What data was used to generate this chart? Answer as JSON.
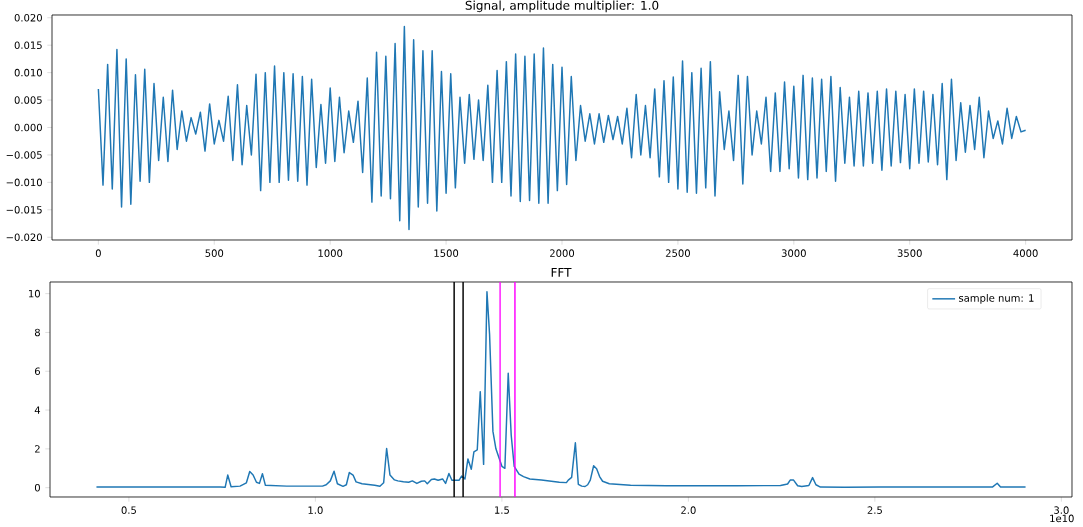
{
  "chart_data": [
    {
      "type": "line",
      "title": "Signal, amplitude multiplier: 1.0",
      "xlim": [
        -200,
        4200
      ],
      "ylim": [
        -0.0205,
        0.0205
      ],
      "xticks": [
        0,
        500,
        1000,
        1500,
        2000,
        2500,
        3000,
        3500,
        4000
      ],
      "yticks": [
        {
          "value": -0.02,
          "label": "−0.020"
        },
        {
          "value": -0.015,
          "label": "−0.015"
        },
        {
          "value": -0.01,
          "label": "−0.010"
        },
        {
          "value": -0.005,
          "label": "−0.005"
        },
        {
          "value": 0,
          "label": "0.000"
        },
        {
          "value": 0.005,
          "label": "0.005"
        },
        {
          "value": 0.01,
          "label": "0.010"
        },
        {
          "value": 0.015,
          "label": "0.015"
        },
        {
          "value": 0.02,
          "label": "0.020"
        }
      ],
      "x": [
        0,
        20,
        40,
        60,
        80,
        100,
        120,
        140,
        160,
        180,
        200,
        220,
        240,
        260,
        280,
        300,
        320,
        340,
        360,
        380,
        400,
        420,
        440,
        460,
        480,
        500,
        520,
        540,
        560,
        580,
        600,
        620,
        640,
        660,
        680,
        700,
        720,
        740,
        760,
        780,
        800,
        820,
        840,
        860,
        880,
        900,
        920,
        940,
        960,
        980,
        1000,
        1020,
        1040,
        1060,
        1080,
        1100,
        1120,
        1140,
        1160,
        1180,
        1200,
        1220,
        1240,
        1260,
        1280,
        1300,
        1320,
        1340,
        1360,
        1380,
        1400,
        1420,
        1440,
        1460,
        1480,
        1500,
        1520,
        1540,
        1560,
        1580,
        1600,
        1620,
        1640,
        1660,
        1680,
        1700,
        1720,
        1740,
        1760,
        1780,
        1800,
        1820,
        1840,
        1860,
        1880,
        1900,
        1920,
        1940,
        1960,
        1980,
        2000,
        2020,
        2040,
        2060,
        2080,
        2100,
        2120,
        2140,
        2160,
        2180,
        2200,
        2220,
        2240,
        2260,
        2280,
        2300,
        2320,
        2340,
        2360,
        2380,
        2400,
        2420,
        2440,
        2460,
        2480,
        2500,
        2520,
        2540,
        2560,
        2580,
        2600,
        2620,
        2640,
        2660,
        2680,
        2700,
        2720,
        2740,
        2760,
        2780,
        2800,
        2820,
        2840,
        2860,
        2880,
        2900,
        2920,
        2940,
        2960,
        2980,
        3000,
        3020,
        3040,
        3060,
        3080,
        3100,
        3120,
        3140,
        3160,
        3180,
        3200,
        3220,
        3240,
        3260,
        3280,
        3300,
        3320,
        3340,
        3360,
        3380,
        3400,
        3420,
        3440,
        3460,
        3480,
        3500,
        3520,
        3540,
        3560,
        3580,
        3600,
        3620,
        3640,
        3660,
        3680,
        3700,
        3720,
        3740,
        3760,
        3780,
        3800,
        3820,
        3840,
        3860,
        3880,
        3900,
        3920,
        3940,
        3960,
        3980,
        4000
      ],
      "series": [
        {
          "color": "#1f77b4",
          "values": [
            0.007,
            -0.0105,
            0.0115,
            -0.0112,
            0.0142,
            -0.0145,
            0.0125,
            -0.014,
            0.0096,
            -0.0098,
            0.0106,
            -0.01,
            0.008,
            -0.006,
            0.0055,
            -0.0062,
            0.0068,
            -0.004,
            0.003,
            -0.0025,
            0.0018,
            -0.0012,
            0.0028,
            -0.0043,
            0.0043,
            -0.003,
            0.0013,
            -0.0025,
            0.0057,
            -0.006,
            0.0078,
            -0.0068,
            0.004,
            -0.005,
            0.0097,
            -0.0115,
            0.01,
            -0.01,
            0.0112,
            -0.01,
            0.01,
            -0.0096,
            0.0098,
            -0.0098,
            0.0093,
            -0.0105,
            0.0088,
            -0.0073,
            0.0042,
            -0.0065,
            0.0072,
            -0.0062,
            0.0055,
            -0.0046,
            0.003,
            -0.0027,
            0.0048,
            -0.0082,
            0.009,
            -0.0136,
            0.0137,
            -0.0125,
            0.013,
            -0.013,
            0.0153,
            -0.017,
            0.0184,
            -0.0186,
            0.016,
            -0.0145,
            0.014,
            -0.0138,
            0.014,
            -0.0152,
            0.0102,
            -0.012,
            0.0098,
            -0.011,
            0.0055,
            -0.0065,
            0.006,
            -0.0058,
            0.005,
            -0.006,
            0.0077,
            -0.01,
            0.0104,
            -0.01,
            0.012,
            -0.0125,
            0.0134,
            -0.0135,
            0.013,
            -0.0133,
            0.0134,
            -0.0138,
            0.0145,
            -0.0138,
            0.0115,
            -0.0115,
            0.011,
            -0.0104,
            0.0093,
            -0.006,
            0.004,
            -0.0025,
            0.0025,
            -0.003,
            0.0025,
            -0.0027,
            0.0022,
            -0.0022,
            0.002,
            -0.003,
            0.0035,
            -0.0055,
            0.006,
            -0.005,
            0.004,
            -0.0055,
            0.007,
            -0.009,
            0.0085,
            -0.01,
            0.0092,
            -0.0112,
            0.0121,
            -0.0118,
            0.01,
            -0.012,
            0.0108,
            -0.011,
            0.012,
            -0.0125,
            0.0065,
            -0.004,
            0.003,
            -0.006,
            0.0095,
            -0.0103,
            0.0093,
            -0.005,
            0.003,
            -0.003,
            0.0055,
            -0.008,
            0.0063,
            -0.008,
            0.0083,
            -0.0075,
            0.0075,
            -0.0092,
            0.0095,
            -0.0095,
            0.009,
            -0.0092,
            0.0088,
            -0.008,
            0.0093,
            -0.0098,
            0.0073,
            -0.0065,
            0.0055,
            -0.007,
            0.0066,
            -0.007,
            0.0063,
            -0.0065,
            0.0066,
            -0.0078,
            0.007,
            -0.007,
            0.0066,
            -0.0064,
            0.006,
            -0.0075,
            0.007,
            -0.0065,
            0.0066,
            -0.0063,
            0.006,
            -0.0068,
            0.008,
            -0.0095,
            0.0088,
            -0.006,
            0.0045,
            -0.0045,
            0.004,
            -0.004,
            0.0055,
            -0.0055,
            0.003,
            -0.002,
            0.0012,
            -0.003,
            0.0035,
            -0.002,
            0.002,
            -0.0008,
            -0.0005
          ]
        }
      ]
    },
    {
      "type": "line",
      "title": "FFT",
      "xlim": [
        0.2885,
        3.0285
      ],
      "ylim": [
        -0.48,
        10.6
      ],
      "xticks": [
        0.5,
        {
          "value": 1,
          "label": "1.0"
        },
        1.5,
        {
          "value": 2,
          "label": "2.0"
        },
        2.5,
        {
          "value": 3,
          "label": "3.0"
        }
      ],
      "yticks": [
        0,
        2,
        4,
        6,
        8,
        10
      ],
      "annotations": [
        "1e10"
      ],
      "legend": "top right",
      "ref_lines": [
        {
          "axis": "x",
          "value": 1.372,
          "color": "#000000"
        },
        {
          "axis": "x",
          "value": 1.396,
          "color": "#000000"
        },
        {
          "axis": "x",
          "value": 1.495,
          "color": "#ff00ff"
        },
        {
          "axis": "x",
          "value": 1.535,
          "color": "#ff00ff"
        }
      ],
      "series": [
        {
          "name": "sample num: 1",
          "color": "#1f77b4",
          "x": [
            0.413,
            0.745,
            0.758,
            0.765,
            0.774,
            0.798,
            0.815,
            0.824,
            0.833,
            0.842,
            0.85,
            0.858,
            0.866,
            0.923,
            1.019,
            1.029,
            1.04,
            1.05,
            1.059,
            1.074,
            1.083,
            1.091,
            1.101,
            1.109,
            1.125,
            1.159,
            1.173,
            1.183,
            1.191,
            1.2,
            1.212,
            1.221,
            1.236,
            1.25,
            1.26,
            1.272,
            1.284,
            1.293,
            1.3,
            1.311,
            1.319,
            1.329,
            1.341,
            1.349,
            1.358,
            1.366,
            1.385,
            1.392,
            1.401,
            1.409,
            1.418,
            1.425,
            1.434,
            1.442,
            1.451,
            1.46,
            1.467,
            1.476,
            1.484,
            1.5,
            1.508,
            1.517,
            1.525,
            1.533,
            1.546,
            1.558,
            1.575,
            1.606,
            1.654,
            1.673,
            1.678,
            1.687,
            1.697,
            1.705,
            1.714,
            1.723,
            1.73,
            1.737,
            1.746,
            1.754,
            1.762,
            1.77,
            1.788,
            1.845,
            1.941,
            2.132,
            2.247,
            2.266,
            2.273,
            2.282,
            2.293,
            2.304,
            2.323,
            2.333,
            2.342,
            2.354,
            2.419,
            2.514,
            2.815,
            2.828,
            2.837,
            2.904
          ],
          "values": [
            0.03,
            0.03,
            0.02,
            0.65,
            0.05,
            0.08,
            0.25,
            0.83,
            0.65,
            0.28,
            0.22,
            0.72,
            0.12,
            0.08,
            0.08,
            0.15,
            0.35,
            0.85,
            0.2,
            0.07,
            0.15,
            0.78,
            0.65,
            0.3,
            0.2,
            0.12,
            0.07,
            0.25,
            2.02,
            0.65,
            0.4,
            0.35,
            0.3,
            0.28,
            0.35,
            0.22,
            0.33,
            0.35,
            0.2,
            0.42,
            0.45,
            0.38,
            0.45,
            0.22,
            0.73,
            0.38,
            0.38,
            0.6,
            0.45,
            1.48,
            0.95,
            1.85,
            1.95,
            4.95,
            1.2,
            10.1,
            7.9,
            2.9,
            2.0,
            1.1,
            1.0,
            5.9,
            2.7,
            1.1,
            0.7,
            0.57,
            0.45,
            0.39,
            0.28,
            0.26,
            0.39,
            0.53,
            2.31,
            0.17,
            0.08,
            0.06,
            0.15,
            0.39,
            1.13,
            0.98,
            0.57,
            0.33,
            0.2,
            0.13,
            0.1,
            0.1,
            0.11,
            0.19,
            0.39,
            0.39,
            0.1,
            0.06,
            0.11,
            0.52,
            0.15,
            0.03,
            0.02,
            0.03,
            0.03,
            0.23,
            0.03,
            0.03
          ]
        }
      ]
    }
  ]
}
